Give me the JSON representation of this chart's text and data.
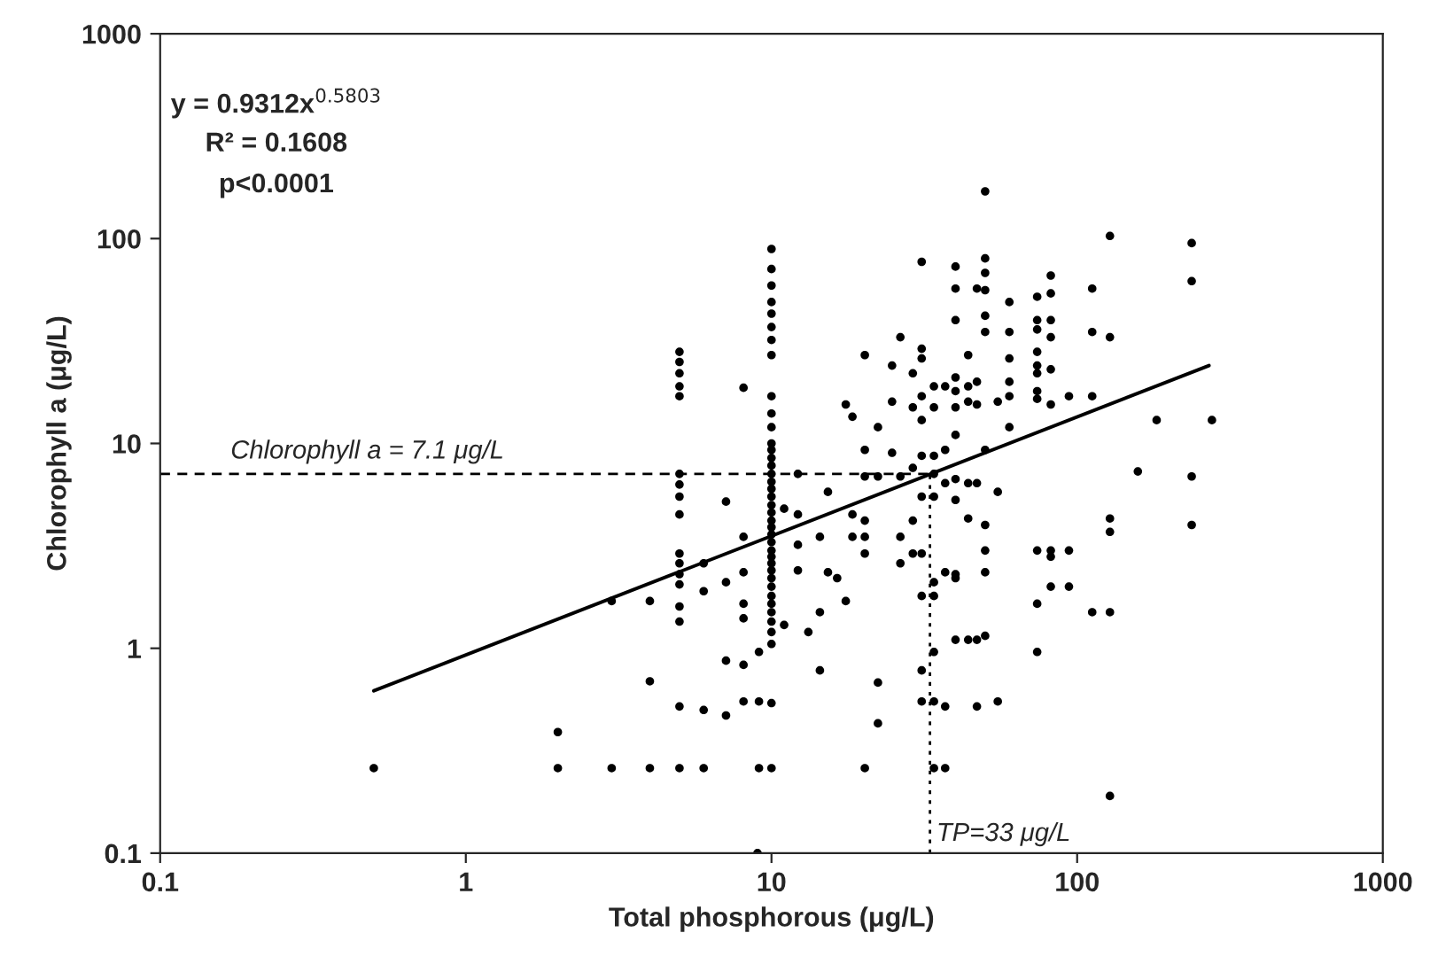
{
  "chart_data": {
    "type": "scatter",
    "xlabel": "Total phosphorous (μg/L)",
    "ylabel": "Chlorophyll a (μg/L)",
    "log": "xy",
    "xlim": [
      0.1,
      1000
    ],
    "ylim": [
      0.1,
      1000
    ],
    "xticks": [
      0.1,
      1,
      10,
      100,
      1000
    ],
    "yticks": [
      0.1,
      1,
      10,
      100,
      1000
    ],
    "grid": false,
    "legend": false,
    "marker": "circle",
    "annotations": [
      "y = 0.9312x$^{0.5803}$",
      "R² = 0.1608",
      "p<0.0001"
    ],
    "ref_lines": [
      {
        "axis": "y",
        "value": 7.1,
        "label": "Chlorophyll a = 7.1 μg/L",
        "color": "#000000",
        "line_style": "dashed"
      },
      {
        "axis": "x",
        "value": 33,
        "label": "TP=33 μg/L",
        "color": "#000000",
        "line_style": "dotted"
      }
    ],
    "series": [
      {
        "color": "#000000",
        "x": [
          0.5,
          2,
          2,
          3,
          3,
          4,
          4,
          4,
          5,
          5,
          5,
          5,
          5,
          5,
          5,
          5,
          5,
          5,
          5,
          5,
          5,
          5,
          5,
          5,
          5,
          6,
          6,
          6,
          6,
          7.1,
          7.1,
          7.1,
          7.1,
          8.1,
          8.1,
          8.1,
          8.1,
          8.1,
          8.1,
          8.1,
          9.1,
          9.1,
          9.1,
          9,
          10,
          10,
          10,
          10,
          10,
          10,
          10,
          10,
          10,
          10,
          10,
          10,
          10,
          10,
          10,
          10,
          10,
          10,
          10,
          10,
          10,
          10,
          10,
          10,
          10,
          10,
          10,
          10,
          10,
          10,
          10,
          10,
          10,
          10,
          10,
          10,
          10,
          10,
          10,
          11,
          11,
          12.2,
          12.2,
          12.2,
          12.2,
          13.2,
          14.4,
          14.4,
          14.4,
          15.3,
          15.3,
          16.4,
          17.5,
          17.5,
          18.4,
          18.4,
          18.4,
          20.2,
          20.2,
          20.2,
          20.2,
          20.2,
          20.2,
          20.2,
          22.3,
          22.3,
          22.3,
          22.3,
          24.8,
          24.8,
          24.8,
          26.4,
          26.4,
          26.4,
          26.4,
          29,
          29,
          29,
          29,
          29,
          31,
          31,
          31,
          31,
          31,
          31,
          31,
          31,
          31,
          31,
          31,
          34,
          34,
          34,
          34,
          34,
          34,
          34,
          34,
          34,
          34,
          37,
          37,
          37,
          37,
          37,
          37,
          40,
          40,
          40,
          40,
          40,
          40,
          40,
          40,
          40,
          40,
          40,
          40,
          44,
          44,
          44,
          44,
          44,
          44,
          47,
          47,
          47,
          47,
          47,
          47,
          50,
          50,
          50,
          50,
          50,
          50,
          50,
          50,
          50,
          50,
          50,
          55,
          55,
          55,
          60,
          60,
          60,
          60,
          60,
          60,
          74,
          74,
          74,
          74,
          74,
          74,
          74,
          74,
          74,
          74,
          74,
          82,
          82,
          82,
          82,
          82,
          82,
          82,
          82,
          82,
          94,
          94,
          94,
          112,
          112,
          112,
          112,
          128,
          128,
          128,
          128,
          128,
          128,
          158,
          182,
          237,
          237,
          237,
          237,
          276
        ],
        "values": [
          0.26,
          0.39,
          0.26,
          1.7,
          0.26,
          1.7,
          0.69,
          0.26,
          28,
          25,
          22,
          19,
          17,
          7.1,
          6.3,
          5.5,
          4.5,
          2.9,
          2.6,
          2.3,
          2.05,
          1.35,
          1.6,
          0.52,
          0.26,
          2.6,
          1.9,
          0.5,
          0.26,
          5.2,
          2.1,
          0.87,
          0.47,
          18.7,
          3.5,
          2.35,
          1.65,
          1.4,
          0.83,
          0.55,
          0.96,
          0.55,
          0.26,
          0.1,
          89,
          71,
          59,
          49,
          43,
          37,
          32,
          27,
          17,
          14,
          12,
          10,
          9.3,
          8.5,
          7.8,
          7.1,
          6.5,
          6,
          5.5,
          5,
          4.6,
          4.2,
          3.9,
          3.6,
          3.3,
          3,
          2.8,
          2.6,
          2.4,
          2.2,
          2,
          1.8,
          1.65,
          1.5,
          1.35,
          1.2,
          1.05,
          0.54,
          0.26,
          4.8,
          1.3,
          7.1,
          4.5,
          3.2,
          2.4,
          1.2,
          3.5,
          1.5,
          0.78,
          5.8,
          2.35,
          2.2,
          15.5,
          1.7,
          13.5,
          4.5,
          3.5,
          27,
          9.3,
          6.9,
          4.2,
          3.5,
          2.9,
          0.26,
          0.68,
          0.43,
          12,
          6.9,
          24,
          16,
          9,
          33,
          6.9,
          3.5,
          2.6,
          22,
          15,
          7.6,
          4.2,
          2.9,
          77,
          29,
          26,
          17,
          13,
          8.7,
          5.5,
          2.9,
          1.8,
          0.78,
          0.55,
          19,
          15,
          8.7,
          7.1,
          5.5,
          2.1,
          1.8,
          0.96,
          0.55,
          0.26,
          19,
          9.3,
          6.4,
          2.35,
          0.52,
          0.26,
          73,
          57,
          40,
          21,
          18,
          15,
          11,
          6.7,
          5.3,
          2.3,
          2.2,
          1.1,
          27,
          19,
          16,
          6.4,
          4.3,
          1.1,
          57,
          20,
          15.5,
          6.4,
          1.1,
          0.52,
          170,
          80,
          68,
          56,
          42,
          35,
          9.3,
          4,
          3,
          2.35,
          1.15,
          16,
          5.8,
          0.55,
          49,
          35,
          26,
          20,
          17,
          12,
          52,
          40,
          36,
          28,
          24,
          22,
          18,
          16.5,
          3,
          1.65,
          0.96,
          66,
          54,
          40,
          33,
          23,
          15.5,
          2.8,
          3,
          2,
          17,
          3,
          2,
          57,
          35,
          17,
          1.5,
          103,
          33,
          4.3,
          3.7,
          1.5,
          0.19,
          7.3,
          13,
          95,
          62,
          6.9,
          4,
          13
        ]
      },
      {
        "type": "line",
        "color": "#000000",
        "line_style": "solid",
        "marker": "none",
        "x": [
          0.5,
          270
        ],
        "values": [
          0.62,
          24
        ]
      }
    ]
  }
}
